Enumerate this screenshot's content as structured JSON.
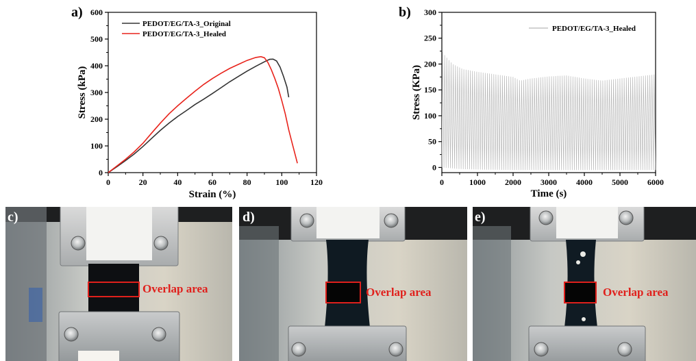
{
  "chart_data": [
    {
      "panel_label": "a)",
      "type": "line",
      "xlabel": "Strain (%)",
      "ylabel": "Stress (kPa)",
      "xlim": [
        0,
        120
      ],
      "ylim": [
        0,
        600
      ],
      "xticks": [
        "0",
        "20",
        "40",
        "60",
        "80",
        "100",
        "120"
      ],
      "yticks": [
        "0",
        "100",
        "200",
        "300",
        "400",
        "500",
        "600"
      ],
      "legend_position": "top-left",
      "series": [
        {
          "name": "PEDOT/EG/TA-3_Original",
          "color": "#333333",
          "x": [
            0,
            5,
            10,
            15,
            20,
            25,
            30,
            35,
            40,
            45,
            50,
            55,
            60,
            65,
            70,
            75,
            80,
            85,
            90,
            93,
            95,
            97,
            99,
            101,
            103,
            104
          ],
          "y": [
            0,
            22,
            45,
            70,
            98,
            128,
            158,
            185,
            210,
            232,
            255,
            275,
            296,
            318,
            340,
            360,
            380,
            398,
            415,
            424,
            425,
            418,
            395,
            360,
            320,
            282
          ]
        },
        {
          "name": "PEDOT/EG/TA-3_Healed",
          "color": "#e8231b",
          "x": [
            0,
            5,
            10,
            15,
            20,
            25,
            30,
            35,
            40,
            45,
            50,
            55,
            60,
            65,
            70,
            75,
            80,
            85,
            88,
            90,
            92,
            94,
            96,
            98,
            100,
            102,
            104,
            106,
            108,
            109
          ],
          "y": [
            0,
            25,
            50,
            78,
            110,
            148,
            185,
            220,
            250,
            278,
            305,
            330,
            352,
            372,
            390,
            405,
            420,
            431,
            434,
            430,
            412,
            385,
            352,
            315,
            270,
            220,
            160,
            110,
            60,
            35
          ]
        }
      ]
    },
    {
      "panel_label": "b)",
      "type": "line",
      "xlabel": "Time (s)",
      "ylabel": "Stress (KPa)",
      "xlim": [
        0,
        6000
      ],
      "ylim": [
        -10,
        300
      ],
      "xticks": [
        "0",
        "1000",
        "2000",
        "3000",
        "4000",
        "5000",
        "6000"
      ],
      "yticks": [
        "0",
        "50",
        "100",
        "150",
        "200",
        "250",
        "300"
      ],
      "legend_position": "top-right",
      "cycle_period_s": 60,
      "series": [
        {
          "name": "PEDOT/EG/TA-3_Healed",
          "color": "#b8b8b8",
          "peak_time_s": [
            0,
            100,
            300,
            600,
            1000,
            1500,
            2000,
            2200,
            2500,
            3000,
            3500,
            4000,
            4500,
            5000,
            5500,
            6000
          ],
          "peak_stress_kpa": [
            225,
            215,
            200,
            190,
            185,
            180,
            175,
            168,
            172,
            176,
            178,
            172,
            168,
            172,
            176,
            180
          ],
          "valley_time_s": [
            0,
            500,
            1000,
            2000,
            3000,
            4000,
            5000,
            6000
          ],
          "valley_stress_kpa": [
            0,
            -3,
            -4,
            -5,
            -5,
            -5,
            -5,
            -5
          ]
        }
      ]
    }
  ],
  "photos": [
    {
      "panel_label": "c)",
      "box_label": "Overlap area"
    },
    {
      "panel_label": "d)",
      "box_label": "Overlap area"
    },
    {
      "panel_label": "e)",
      "box_label": "Overlap area"
    }
  ]
}
